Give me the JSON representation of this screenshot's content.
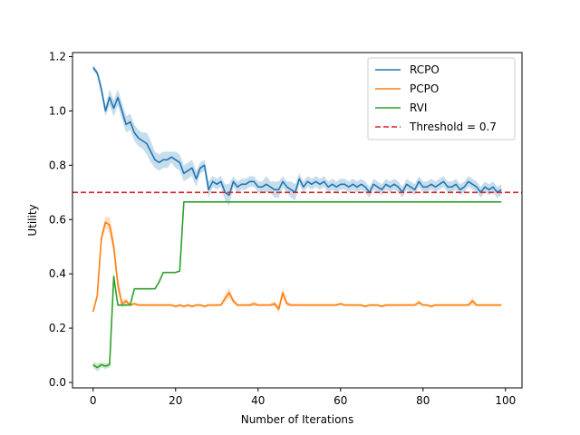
{
  "chart_data": {
    "type": "line",
    "title": "",
    "xlabel": "Number of Iterations",
    "ylabel": "Utility",
    "xlim": [
      -5,
      104
    ],
    "ylim": [
      -0.02,
      1.215
    ],
    "xticks": [
      0,
      20,
      40,
      60,
      80,
      100
    ],
    "yticks": [
      0.0,
      0.2,
      0.4,
      0.6,
      0.8,
      1.0,
      1.2
    ],
    "grid": false,
    "legend_position": "top-right",
    "series": [
      {
        "name": "RCPO",
        "color": "#1f77b4",
        "x": [
          0,
          1,
          2,
          3,
          4,
          5,
          6,
          7,
          8,
          9,
          10,
          11,
          12,
          13,
          14,
          15,
          16,
          17,
          18,
          19,
          20,
          21,
          22,
          23,
          24,
          25,
          26,
          27,
          28,
          29,
          30,
          31,
          32,
          33,
          34,
          35,
          36,
          37,
          38,
          39,
          40,
          41,
          42,
          43,
          44,
          45,
          46,
          47,
          48,
          49,
          50,
          51,
          52,
          53,
          54,
          55,
          56,
          57,
          58,
          59,
          60,
          61,
          62,
          63,
          64,
          65,
          66,
          67,
          68,
          69,
          70,
          71,
          72,
          73,
          74,
          75,
          76,
          77,
          78,
          79,
          80,
          81,
          82,
          83,
          84,
          85,
          86,
          87,
          88,
          89,
          90,
          91,
          92,
          93,
          94,
          95,
          96,
          97,
          98,
          99
        ],
        "values": [
          1.16,
          1.14,
          1.08,
          1.0,
          1.05,
          1.01,
          1.05,
          1.0,
          0.95,
          0.96,
          0.92,
          0.9,
          0.89,
          0.88,
          0.85,
          0.82,
          0.81,
          0.82,
          0.82,
          0.83,
          0.82,
          0.81,
          0.77,
          0.78,
          0.79,
          0.75,
          0.79,
          0.8,
          0.71,
          0.74,
          0.73,
          0.74,
          0.7,
          0.69,
          0.74,
          0.72,
          0.73,
          0.73,
          0.74,
          0.74,
          0.72,
          0.72,
          0.73,
          0.72,
          0.71,
          0.71,
          0.74,
          0.72,
          0.71,
          0.7,
          0.75,
          0.72,
          0.74,
          0.73,
          0.74,
          0.73,
          0.74,
          0.72,
          0.73,
          0.72,
          0.73,
          0.73,
          0.72,
          0.73,
          0.72,
          0.73,
          0.72,
          0.7,
          0.73,
          0.72,
          0.71,
          0.73,
          0.72,
          0.73,
          0.72,
          0.7,
          0.73,
          0.72,
          0.71,
          0.74,
          0.72,
          0.72,
          0.73,
          0.72,
          0.73,
          0.74,
          0.72,
          0.72,
          0.73,
          0.71,
          0.72,
          0.74,
          0.73,
          0.72,
          0.7,
          0.72,
          0.71,
          0.72,
          0.7,
          0.71
        ],
        "band": [
          0.01,
          0.01,
          0.02,
          0.02,
          0.03,
          0.03,
          0.03,
          0.03,
          0.03,
          0.03,
          0.03,
          0.03,
          0.03,
          0.04,
          0.04,
          0.03,
          0.03,
          0.03,
          0.03,
          0.02,
          0.03,
          0.03,
          0.03,
          0.03,
          0.03,
          0.03,
          0.02,
          0.02,
          0.03,
          0.02,
          0.02,
          0.02,
          0.03,
          0.04,
          0.02,
          0.02,
          0.02,
          0.02,
          0.02,
          0.02,
          0.02,
          0.02,
          0.03,
          0.02,
          0.03,
          0.03,
          0.02,
          0.02,
          0.03,
          0.03,
          0.02,
          0.02,
          0.02,
          0.02,
          0.02,
          0.02,
          0.02,
          0.02,
          0.02,
          0.02,
          0.02,
          0.02,
          0.02,
          0.02,
          0.02,
          0.02,
          0.02,
          0.02,
          0.02,
          0.02,
          0.02,
          0.02,
          0.02,
          0.02,
          0.02,
          0.02,
          0.02,
          0.02,
          0.02,
          0.02,
          0.02,
          0.02,
          0.02,
          0.02,
          0.02,
          0.02,
          0.02,
          0.02,
          0.02,
          0.02,
          0.02,
          0.02,
          0.02,
          0.02,
          0.02,
          0.02,
          0.02,
          0.02,
          0.02,
          0.02
        ]
      },
      {
        "name": "PCPO",
        "color": "#ff7f0e",
        "x": [
          0,
          1,
          2,
          3,
          4,
          5,
          6,
          7,
          8,
          9,
          10,
          11,
          12,
          13,
          14,
          15,
          16,
          17,
          18,
          19,
          20,
          21,
          22,
          23,
          24,
          25,
          26,
          27,
          28,
          29,
          30,
          31,
          32,
          33,
          34,
          35,
          36,
          37,
          38,
          39,
          40,
          41,
          42,
          43,
          44,
          45,
          46,
          47,
          48,
          49,
          50,
          51,
          52,
          53,
          54,
          55,
          56,
          57,
          58,
          59,
          60,
          61,
          62,
          63,
          64,
          65,
          66,
          67,
          68,
          69,
          70,
          71,
          72,
          73,
          74,
          75,
          76,
          77,
          78,
          79,
          80,
          81,
          82,
          83,
          84,
          85,
          86,
          87,
          88,
          89,
          90,
          91,
          92,
          93,
          94,
          95,
          96,
          97,
          98,
          99
        ],
        "values": [
          0.26,
          0.32,
          0.53,
          0.59,
          0.58,
          0.5,
          0.36,
          0.29,
          0.3,
          0.285,
          0.29,
          0.285,
          0.285,
          0.285,
          0.285,
          0.285,
          0.285,
          0.285,
          0.285,
          0.285,
          0.28,
          0.285,
          0.28,
          0.285,
          0.28,
          0.285,
          0.285,
          0.28,
          0.285,
          0.285,
          0.285,
          0.285,
          0.31,
          0.33,
          0.3,
          0.285,
          0.285,
          0.285,
          0.285,
          0.29,
          0.285,
          0.285,
          0.285,
          0.285,
          0.29,
          0.27,
          0.33,
          0.29,
          0.285,
          0.285,
          0.285,
          0.285,
          0.285,
          0.285,
          0.285,
          0.285,
          0.285,
          0.285,
          0.285,
          0.285,
          0.29,
          0.285,
          0.285,
          0.285,
          0.285,
          0.285,
          0.28,
          0.285,
          0.285,
          0.285,
          0.28,
          0.285,
          0.285,
          0.285,
          0.285,
          0.285,
          0.285,
          0.285,
          0.285,
          0.295,
          0.285,
          0.285,
          0.28,
          0.285,
          0.285,
          0.285,
          0.285,
          0.285,
          0.285,
          0.285,
          0.285,
          0.285,
          0.3,
          0.285,
          0.285,
          0.285,
          0.285,
          0.285,
          0.285,
          0.285
        ],
        "band": [
          0.005,
          0.01,
          0.02,
          0.02,
          0.03,
          0.03,
          0.03,
          0.015,
          0.01,
          0.005,
          0.005,
          0.005,
          0.005,
          0.005,
          0.005,
          0.005,
          0.005,
          0.005,
          0.005,
          0.005,
          0.005,
          0.005,
          0.005,
          0.005,
          0.005,
          0.005,
          0.005,
          0.005,
          0.005,
          0.005,
          0.005,
          0.005,
          0.015,
          0.02,
          0.01,
          0.005,
          0.005,
          0.005,
          0.005,
          0.01,
          0.005,
          0.005,
          0.005,
          0.005,
          0.01,
          0.015,
          0.02,
          0.01,
          0.005,
          0.005,
          0.005,
          0.005,
          0.005,
          0.005,
          0.005,
          0.005,
          0.005,
          0.005,
          0.005,
          0.005,
          0.005,
          0.005,
          0.005,
          0.005,
          0.005,
          0.005,
          0.005,
          0.005,
          0.005,
          0.005,
          0.005,
          0.005,
          0.005,
          0.005,
          0.005,
          0.005,
          0.005,
          0.005,
          0.005,
          0.01,
          0.005,
          0.005,
          0.005,
          0.005,
          0.005,
          0.005,
          0.005,
          0.005,
          0.005,
          0.005,
          0.005,
          0.005,
          0.015,
          0.005,
          0.005,
          0.005,
          0.005,
          0.005,
          0.005,
          0.005
        ]
      },
      {
        "name": "RVI",
        "color": "#2ca02c",
        "x": [
          0,
          1,
          2,
          3,
          4,
          5,
          6,
          7,
          8,
          9,
          10,
          11,
          12,
          13,
          14,
          15,
          16,
          17,
          18,
          19,
          20,
          21,
          22,
          23,
          24,
          25,
          26,
          27,
          28,
          29,
          30,
          31,
          32,
          33,
          34,
          35,
          36,
          37,
          38,
          39,
          40,
          41,
          42,
          43,
          44,
          45,
          46,
          47,
          48,
          49,
          50,
          51,
          52,
          53,
          54,
          55,
          56,
          57,
          58,
          59,
          60,
          61,
          62,
          63,
          64,
          65,
          66,
          67,
          68,
          69,
          70,
          71,
          72,
          73,
          74,
          75,
          76,
          77,
          78,
          79,
          80,
          81,
          82,
          83,
          84,
          85,
          86,
          87,
          88,
          89,
          90,
          91,
          92,
          93,
          94,
          95,
          96,
          97,
          98,
          99
        ],
        "values": [
          0.065,
          0.055,
          0.065,
          0.06,
          0.065,
          0.39,
          0.285,
          0.285,
          0.285,
          0.285,
          0.345,
          0.345,
          0.345,
          0.345,
          0.345,
          0.345,
          0.37,
          0.405,
          0.405,
          0.405,
          0.405,
          0.41,
          0.665,
          0.665,
          0.665,
          0.665,
          0.665,
          0.665,
          0.665,
          0.665,
          0.665,
          0.665,
          0.665,
          0.665,
          0.665,
          0.665,
          0.665,
          0.665,
          0.665,
          0.665,
          0.665,
          0.665,
          0.665,
          0.665,
          0.665,
          0.665,
          0.665,
          0.665,
          0.665,
          0.665,
          0.665,
          0.665,
          0.665,
          0.665,
          0.665,
          0.665,
          0.665,
          0.665,
          0.665,
          0.665,
          0.665,
          0.665,
          0.665,
          0.665,
          0.665,
          0.665,
          0.665,
          0.665,
          0.665,
          0.665,
          0.665,
          0.665,
          0.665,
          0.665,
          0.665,
          0.665,
          0.665,
          0.665,
          0.665,
          0.665,
          0.665,
          0.665,
          0.665,
          0.665,
          0.665,
          0.665,
          0.665,
          0.665,
          0.665,
          0.665,
          0.665,
          0.665,
          0.665,
          0.665,
          0.665,
          0.665,
          0.665,
          0.665,
          0.665,
          0.665
        ],
        "band": [
          0.01,
          0.015,
          0.01,
          0.01,
          0.01,
          0.02,
          0.005,
          0.005,
          0.005,
          0,
          0,
          0,
          0,
          0,
          0,
          0,
          0,
          0,
          0,
          0,
          0,
          0,
          0,
          0,
          0,
          0,
          0,
          0,
          0,
          0,
          0,
          0,
          0,
          0,
          0,
          0,
          0,
          0,
          0,
          0,
          0,
          0,
          0,
          0,
          0,
          0,
          0,
          0,
          0,
          0,
          0,
          0,
          0,
          0,
          0,
          0,
          0,
          0,
          0,
          0,
          0,
          0,
          0,
          0,
          0,
          0,
          0,
          0,
          0,
          0,
          0,
          0,
          0,
          0,
          0,
          0,
          0,
          0,
          0,
          0,
          0,
          0,
          0,
          0,
          0,
          0,
          0,
          0,
          0,
          0,
          0,
          0,
          0,
          0,
          0,
          0,
          0,
          0,
          0,
          0
        ]
      }
    ],
    "threshold": {
      "name": "Threshold = 0.7",
      "value": 0.7,
      "color": "#d62728"
    }
  }
}
